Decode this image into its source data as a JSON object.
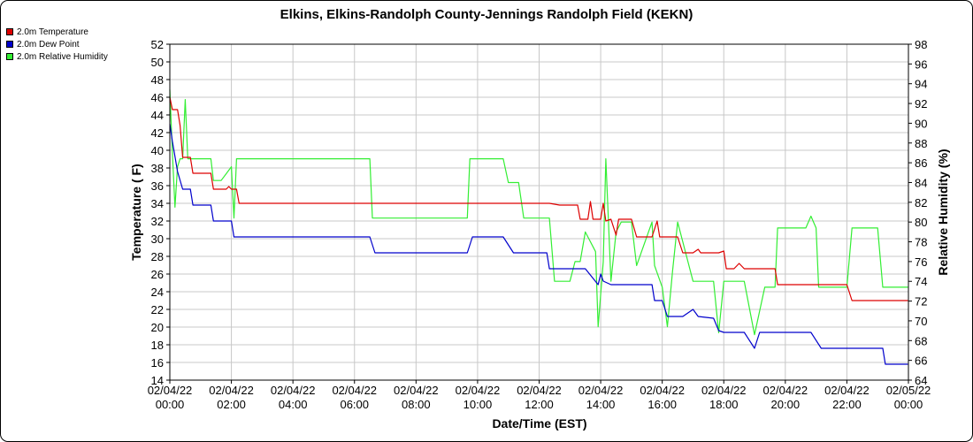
{
  "chart_data": {
    "type": "line",
    "title": "Elkins, Elkins-Randolph County-Jennings Randolph Field (KEKN)",
    "xlabel": "Date/Time (EST)",
    "ylabel": "Temperature ( F)",
    "y2label": "Relative Humidity (%)",
    "ylim": [
      14,
      52
    ],
    "y2lim": [
      64,
      98
    ],
    "xlim": [
      "2022-02-04T00:00",
      "2022-02-05T00:00"
    ],
    "grid": true,
    "legend_position": "top-left",
    "yticks": [
      "14",
      "16",
      "18",
      "20",
      "22",
      "24",
      "26",
      "28",
      "30",
      "32",
      "34",
      "36",
      "38",
      "40",
      "42",
      "44",
      "46",
      "48",
      "50",
      "52"
    ],
    "y2ticks": [
      "64",
      "66",
      "68",
      "70",
      "72",
      "74",
      "76",
      "78",
      "80",
      "82",
      "84",
      "86",
      "88",
      "90",
      "92",
      "94",
      "96",
      "98"
    ],
    "xticks": [
      {
        "date": "02/04/22",
        "time": "00:00"
      },
      {
        "date": "02/04/22",
        "time": "02:00"
      },
      {
        "date": "02/04/22",
        "time": "04:00"
      },
      {
        "date": "02/04/22",
        "time": "06:00"
      },
      {
        "date": "02/04/22",
        "time": "08:00"
      },
      {
        "date": "02/04/22",
        "time": "10:00"
      },
      {
        "date": "02/04/22",
        "time": "12:00"
      },
      {
        "date": "02/04/22",
        "time": "14:00"
      },
      {
        "date": "02/04/22",
        "time": "16:00"
      },
      {
        "date": "02/04/22",
        "time": "18:00"
      },
      {
        "date": "02/04/22",
        "time": "20:00"
      },
      {
        "date": "02/04/22",
        "time": "22:00"
      },
      {
        "date": "02/05/22",
        "time": "00:00"
      }
    ],
    "series": [
      {
        "name": "2.0m Temperature",
        "color": "#dd0000",
        "axis": "left",
        "points": [
          [
            "00:00",
            46
          ],
          [
            "00:05",
            44.6
          ],
          [
            "00:15",
            44.6
          ],
          [
            "00:20",
            42.8
          ],
          [
            "00:25",
            39.2
          ],
          [
            "00:40",
            39.2
          ],
          [
            "00:45",
            37.4
          ],
          [
            "01:20",
            37.4
          ],
          [
            "01:25",
            35.6
          ],
          [
            "01:50",
            35.6
          ],
          [
            "01:55",
            35.9
          ],
          [
            "02:00",
            35.6
          ],
          [
            "02:10",
            35.6
          ],
          [
            "02:15",
            34
          ],
          [
            "04:00",
            34
          ],
          [
            "06:00",
            34
          ],
          [
            "08:00",
            34
          ],
          [
            "10:00",
            34
          ],
          [
            "11:00",
            34
          ],
          [
            "12:20",
            34
          ],
          [
            "12:40",
            33.8
          ],
          [
            "13:15",
            33.8
          ],
          [
            "13:20",
            32.2
          ],
          [
            "13:35",
            32.2
          ],
          [
            "13:40",
            34.2
          ],
          [
            "13:45",
            32.2
          ],
          [
            "14:00",
            32.2
          ],
          [
            "14:05",
            34
          ],
          [
            "14:10",
            32
          ],
          [
            "14:20",
            32.2
          ],
          [
            "14:30",
            30.4
          ],
          [
            "14:35",
            32.2
          ],
          [
            "15:00",
            32.2
          ],
          [
            "15:10",
            30.2
          ],
          [
            "15:40",
            30.2
          ],
          [
            "15:50",
            32
          ],
          [
            "15:55",
            30.2
          ],
          [
            "16:30",
            30.2
          ],
          [
            "16:40",
            28.4
          ],
          [
            "17:00",
            28.4
          ],
          [
            "17:10",
            28.8
          ],
          [
            "17:15",
            28.4
          ],
          [
            "17:50",
            28.4
          ],
          [
            "18:00",
            28.6
          ],
          [
            "18:05",
            26.6
          ],
          [
            "18:20",
            26.6
          ],
          [
            "18:30",
            27.2
          ],
          [
            "18:40",
            26.6
          ],
          [
            "19:40",
            26.6
          ],
          [
            "19:45",
            24.8
          ],
          [
            "21:00",
            24.8
          ],
          [
            "21:30",
            24.8
          ],
          [
            "21:50",
            24.8
          ],
          [
            "22:00",
            24.8
          ],
          [
            "22:10",
            23
          ],
          [
            "23:59",
            23
          ]
        ]
      },
      {
        "name": "2.0m Dew Point",
        "color": "#0000cc",
        "axis": "left",
        "points": [
          [
            "00:00",
            43
          ],
          [
            "00:05",
            41
          ],
          [
            "00:15",
            37.6
          ],
          [
            "00:25",
            35.6
          ],
          [
            "00:40",
            35.6
          ],
          [
            "00:45",
            33.8
          ],
          [
            "01:20",
            33.8
          ],
          [
            "01:25",
            32
          ],
          [
            "02:00",
            32
          ],
          [
            "02:05",
            30.2
          ],
          [
            "04:00",
            30.2
          ],
          [
            "06:00",
            30.2
          ],
          [
            "06:30",
            30.2
          ],
          [
            "06:40",
            28.4
          ],
          [
            "08:00",
            28.4
          ],
          [
            "09:40",
            28.4
          ],
          [
            "09:50",
            30.2
          ],
          [
            "10:50",
            30.2
          ],
          [
            "11:10",
            28.4
          ],
          [
            "12:15",
            28.4
          ],
          [
            "12:20",
            26.6
          ],
          [
            "13:00",
            26.6
          ],
          [
            "13:30",
            26.6
          ],
          [
            "13:55",
            24.8
          ],
          [
            "14:00",
            26
          ],
          [
            "14:05",
            25.2
          ],
          [
            "14:20",
            24.8
          ],
          [
            "15:20",
            24.8
          ],
          [
            "15:40",
            24.8
          ],
          [
            "15:45",
            23
          ],
          [
            "16:00",
            23
          ],
          [
            "16:10",
            21.2
          ],
          [
            "16:40",
            21.2
          ],
          [
            "17:00",
            22
          ],
          [
            "17:10",
            21.2
          ],
          [
            "17:40",
            21
          ],
          [
            "17:50",
            19.6
          ],
          [
            "18:00",
            19.4
          ],
          [
            "18:40",
            19.4
          ],
          [
            "19:00",
            17.6
          ],
          [
            "19:10",
            19.4
          ],
          [
            "20:50",
            19.4
          ],
          [
            "21:10",
            17.6
          ],
          [
            "22:00",
            17.6
          ],
          [
            "22:10",
            17.6
          ],
          [
            "22:30",
            17.6
          ],
          [
            "23:10",
            17.6
          ],
          [
            "23:15",
            15.8
          ],
          [
            "23:59",
            15.8
          ]
        ]
      },
      {
        "name": "2.0m Relative Humidity",
        "color": "#33ee33",
        "axis": "right",
        "points": [
          [
            "00:00",
            93.4
          ],
          [
            "00:05",
            87
          ],
          [
            "00:10",
            81.5
          ],
          [
            "00:15",
            85.6
          ],
          [
            "00:20",
            86.4
          ],
          [
            "00:25",
            86.4
          ],
          [
            "00:30",
            92.4
          ],
          [
            "00:35",
            86.4
          ],
          [
            "01:20",
            86.4
          ],
          [
            "01:25",
            84.2
          ],
          [
            "01:40",
            84.2
          ],
          [
            "02:00",
            85.6
          ],
          [
            "02:05",
            80.4
          ],
          [
            "02:10",
            86.4
          ],
          [
            "04:00",
            86.4
          ],
          [
            "06:00",
            86.4
          ],
          [
            "06:30",
            86.4
          ],
          [
            "06:35",
            80.4
          ],
          [
            "07:00",
            80.4
          ],
          [
            "08:00",
            80.4
          ],
          [
            "08:30",
            80.4
          ],
          [
            "09:40",
            80.4
          ],
          [
            "09:45",
            86.4
          ],
          [
            "10:50",
            86.4
          ],
          [
            "11:00",
            84
          ],
          [
            "11:20",
            84
          ],
          [
            "11:30",
            80.4
          ],
          [
            "12:20",
            80.4
          ],
          [
            "12:30",
            74
          ],
          [
            "13:00",
            74
          ],
          [
            "13:10",
            76
          ],
          [
            "13:20",
            76
          ],
          [
            "13:30",
            79
          ],
          [
            "13:50",
            77
          ],
          [
            "13:55",
            69.4
          ],
          [
            "14:05",
            76
          ],
          [
            "14:10",
            86.4
          ],
          [
            "14:20",
            74
          ],
          [
            "14:30",
            79
          ],
          [
            "14:40",
            80
          ],
          [
            "15:00",
            80
          ],
          [
            "15:10",
            75.6
          ],
          [
            "15:40",
            80
          ],
          [
            "15:45",
            75.6
          ],
          [
            "16:00",
            73.4
          ],
          [
            "16:10",
            69.4
          ],
          [
            "16:20",
            75
          ],
          [
            "16:30",
            80
          ],
          [
            "16:50",
            76
          ],
          [
            "17:00",
            74
          ],
          [
            "17:20",
            74
          ],
          [
            "17:40",
            74
          ],
          [
            "17:50",
            68.8
          ],
          [
            "18:00",
            74
          ],
          [
            "18:20",
            74
          ],
          [
            "18:40",
            74
          ],
          [
            "19:00",
            68.6
          ],
          [
            "19:20",
            73.4
          ],
          [
            "19:40",
            73.4
          ],
          [
            "19:45",
            79.4
          ],
          [
            "20:40",
            79.4
          ],
          [
            "20:50",
            80.6
          ],
          [
            "21:00",
            79.4
          ],
          [
            "21:05",
            73.4
          ],
          [
            "21:30",
            73.4
          ],
          [
            "21:50",
            73.4
          ],
          [
            "22:00",
            73.4
          ],
          [
            "22:10",
            79.4
          ],
          [
            "23:00",
            79.4
          ],
          [
            "23:10",
            73.4
          ],
          [
            "23:59",
            73.4
          ]
        ]
      }
    ]
  }
}
